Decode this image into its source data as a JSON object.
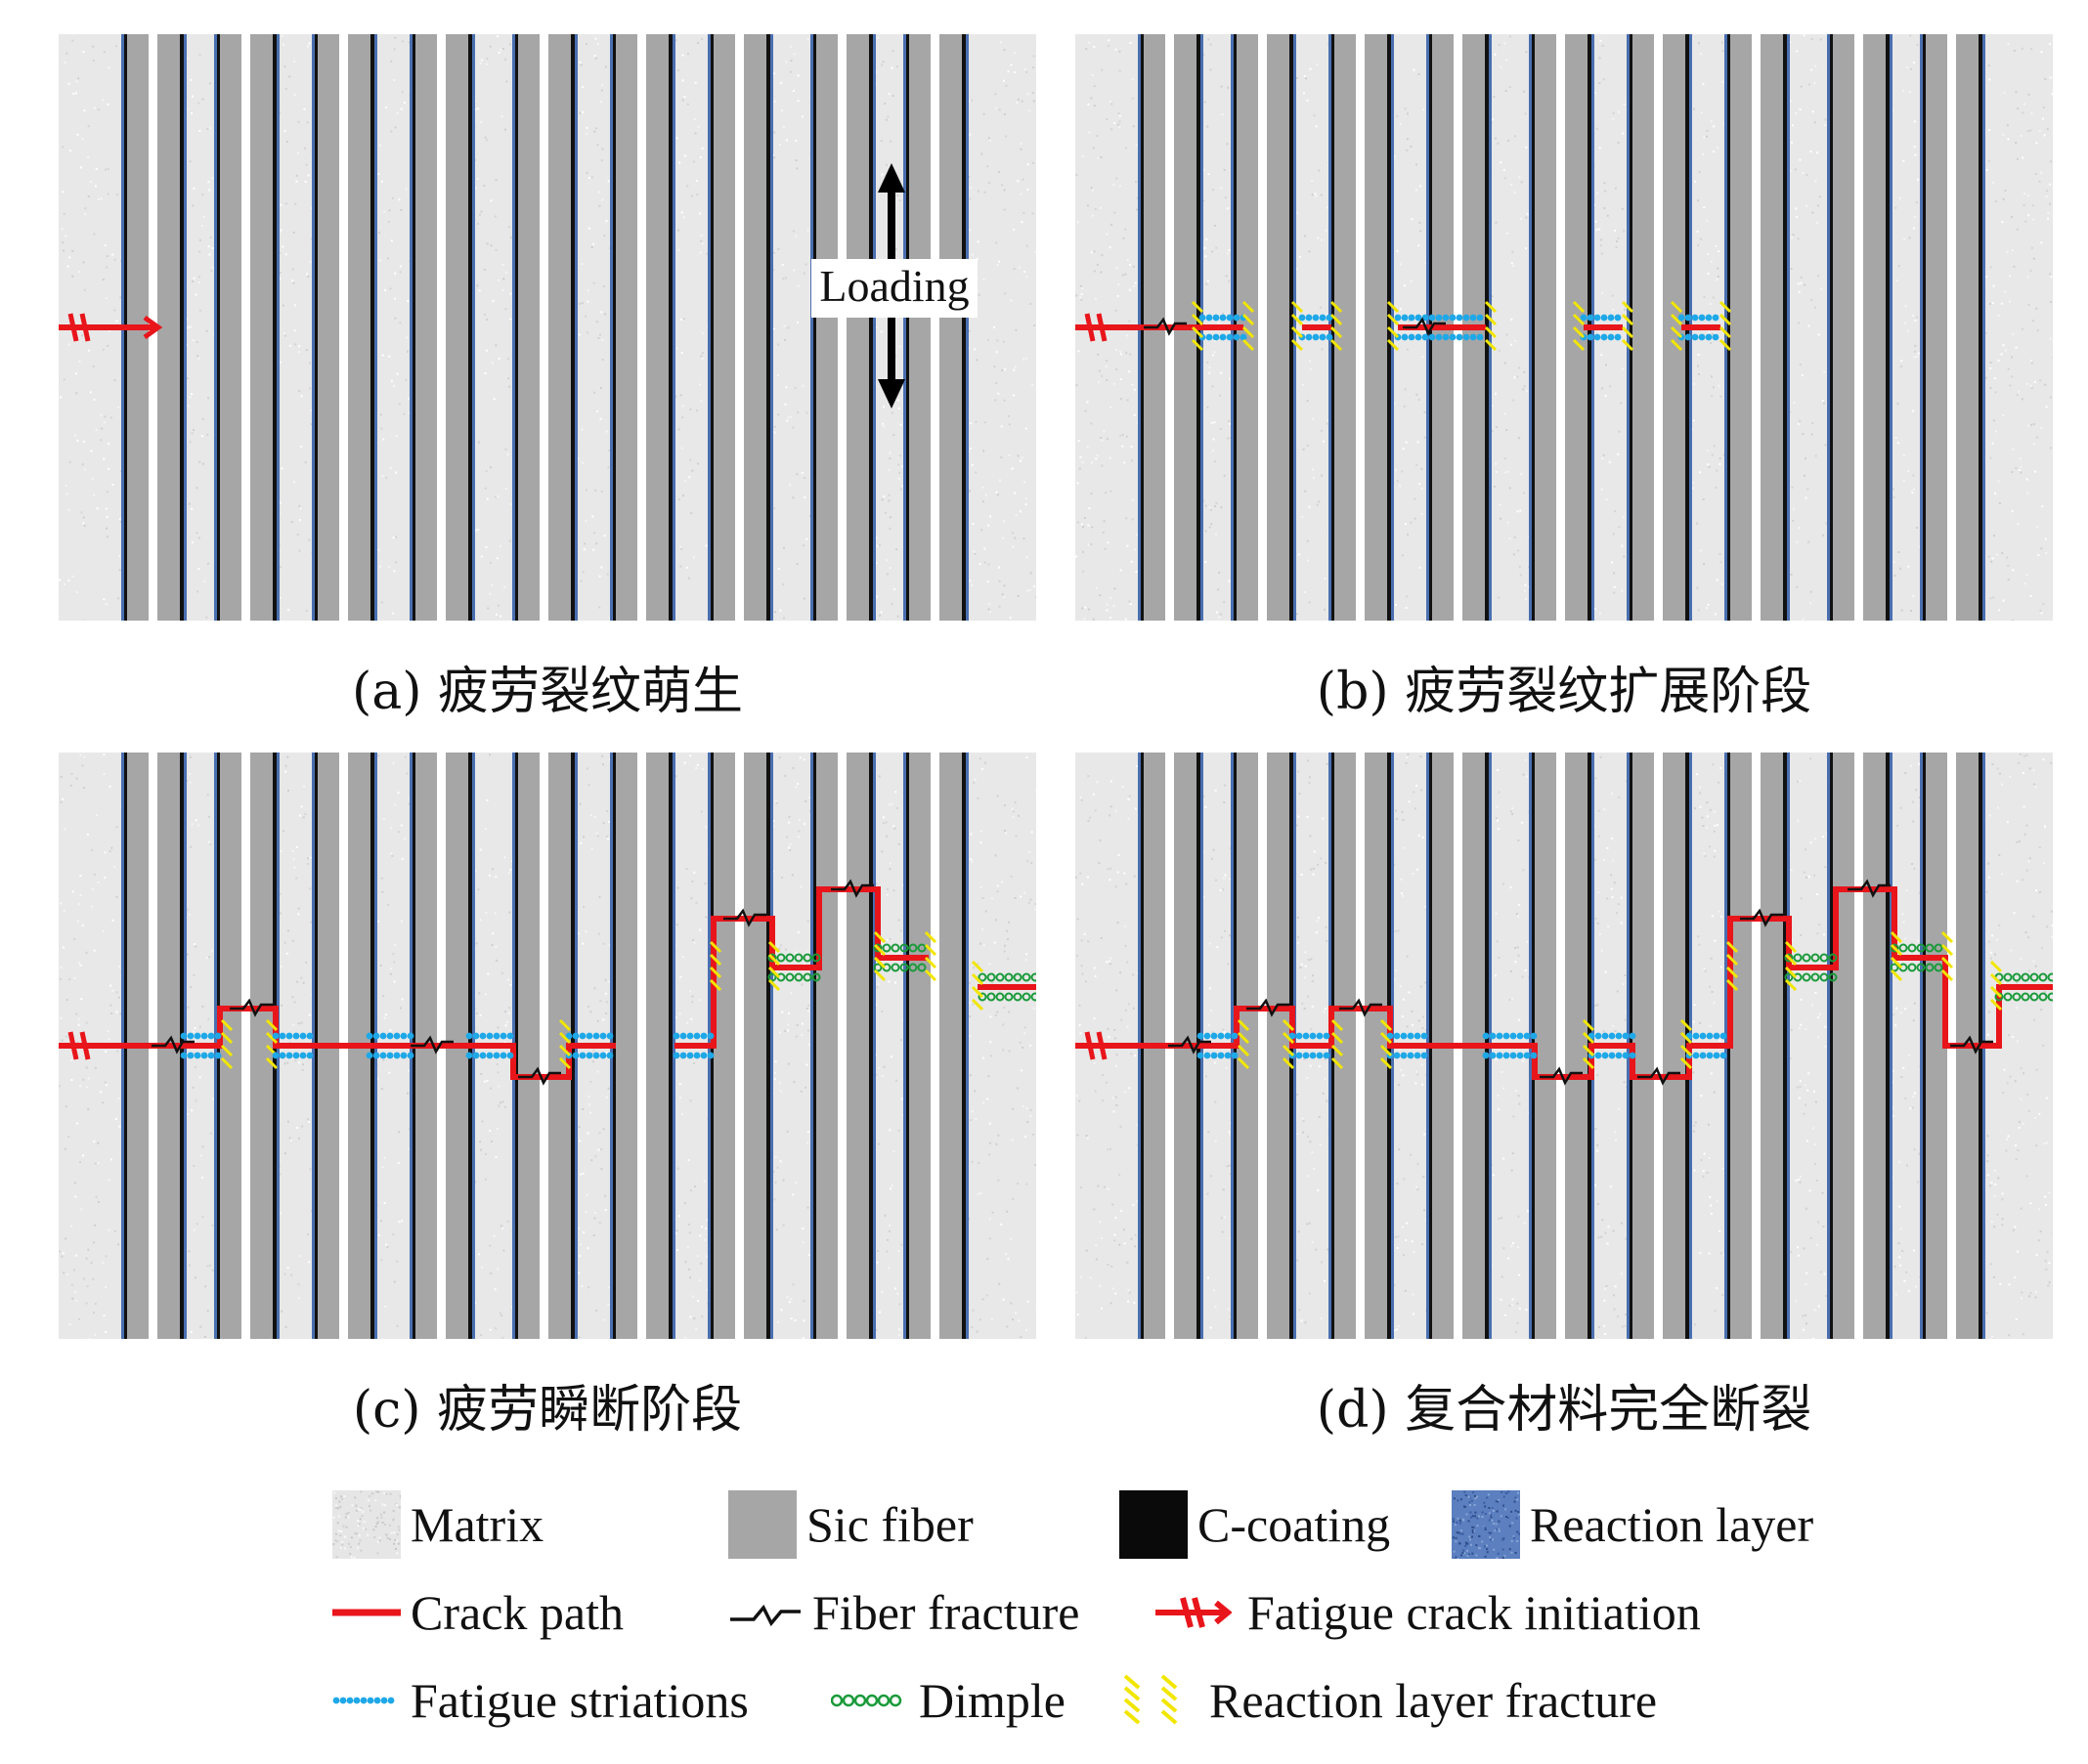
{
  "panels": [
    {
      "id": "a",
      "caption": "(a) 疲劳裂纹萌生",
      "loading_label": "Loading"
    },
    {
      "id": "b",
      "caption": "(b) 疲劳裂纹扩展阶段"
    },
    {
      "id": "c",
      "caption": "(c) 疲劳瞬断阶段"
    },
    {
      "id": "d",
      "caption": "(d) 复合材料完全断裂"
    }
  ],
  "legend": {
    "matrix": "Matrix",
    "sic_fiber": "Sic fiber",
    "c_coating": "C-coating",
    "reaction_layer": "Reaction layer",
    "crack_path": "Crack path",
    "fiber_fracture": "Fiber fracture",
    "fatigue_crack_initiation": "Fatigue crack initiation",
    "fatigue_striations": "Fatigue striations",
    "dimple": "Dimple",
    "reaction_layer_fracture": "Reaction layer fracture"
  },
  "colors": {
    "matrix": "#e8e8e8",
    "fiber": "#a6a6a6",
    "coating": "#111111",
    "reaction": "#4a6fb0",
    "crack": "#e8151b",
    "striation": "#1ea8e8",
    "dimple": "#1a9a3a",
    "rl_fracture": "#f2e600"
  }
}
